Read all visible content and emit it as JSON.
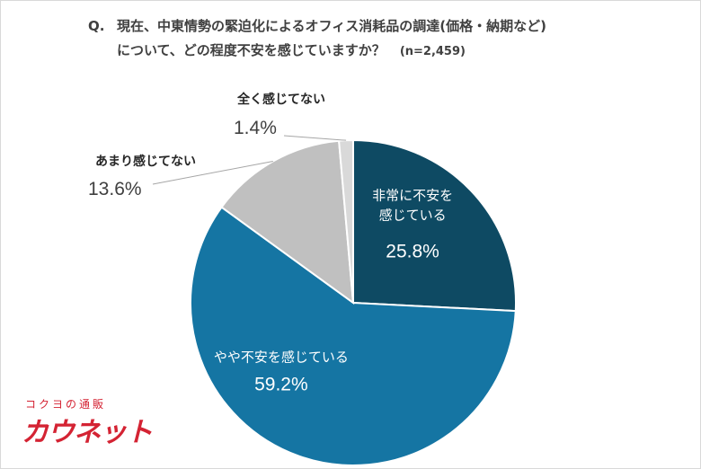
{
  "title": {
    "q_prefix": "Q.",
    "line1": "現在、中東情勢の緊迫化によるオフィス消耗品の調達(価格・納期など)",
    "line2": "について、どの程度不安を感じていますか？",
    "sample": "(n=2,459)"
  },
  "chart_data": {
    "type": "pie",
    "start": "12 o'clock",
    "direction": "clockwise",
    "slices": [
      {
        "label": "非常に不安を感じている",
        "label_lines": [
          "非常に不安を",
          "感じている"
        ],
        "value": 25.8,
        "value_text": "25.8%",
        "color": "#0e4a63",
        "label_position": "inside"
      },
      {
        "label": "やや不安を感じている",
        "label_lines": [
          "やや不安を感じている"
        ],
        "value": 59.2,
        "value_text": "59.2%",
        "color": "#1575a3",
        "label_position": "inside"
      },
      {
        "label": "あまり感じてない",
        "label_lines": [
          "あまり感じてない"
        ],
        "value": 13.6,
        "value_text": "13.6%",
        "color": "#c0c0c0",
        "label_position": "outside"
      },
      {
        "label": "全く感じてない",
        "label_lines": [
          "全く感じてない"
        ],
        "value": 1.4,
        "value_text": "1.4%",
        "color": "#d9d9d9",
        "label_position": "outside"
      }
    ]
  },
  "logo": {
    "small_text": "コクヨの通販",
    "brand": "カウネット",
    "color": "#d42333"
  }
}
